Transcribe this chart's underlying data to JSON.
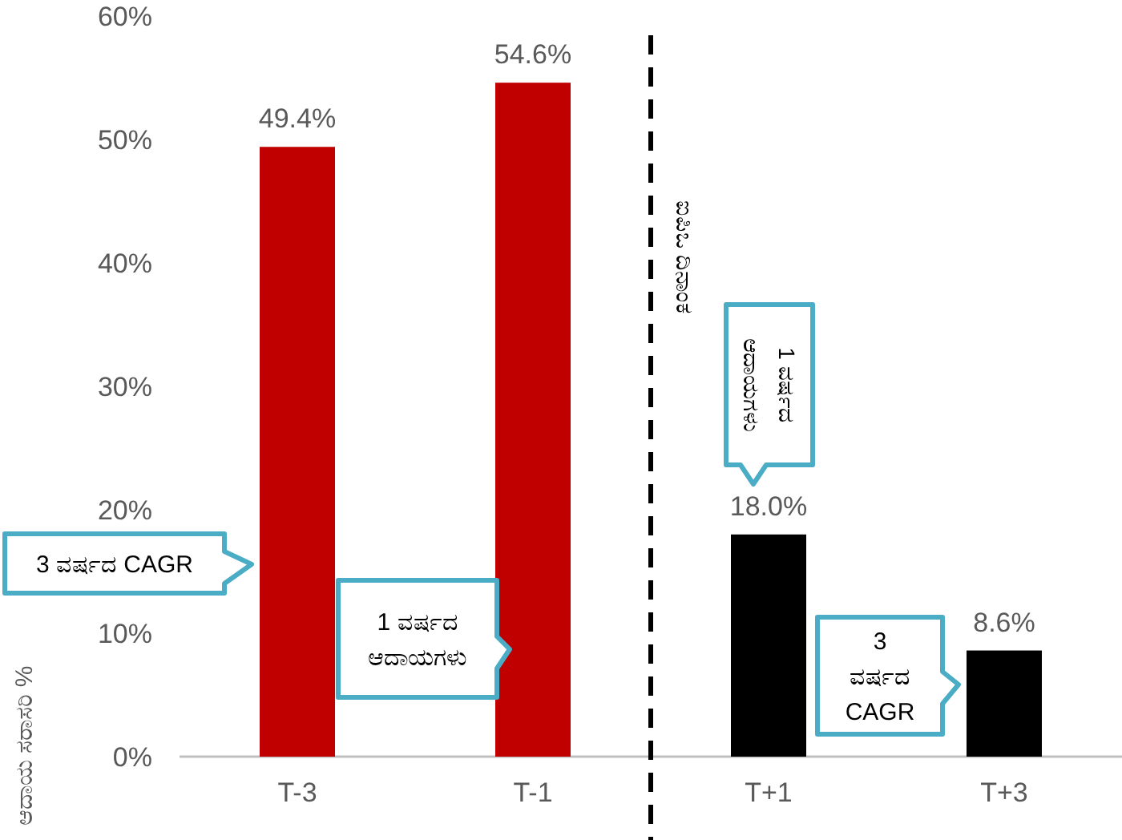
{
  "chart_data": {
    "type": "bar",
    "categories": [
      "T-3",
      "T-1",
      "T+1",
      "T+3"
    ],
    "values": [
      49.4,
      54.6,
      18.0,
      8.6
    ],
    "colors": [
      "#c00000",
      "#c00000",
      "#000000",
      "#000000"
    ],
    "value_labels": [
      "49.4%",
      "54.6%",
      "18.0%",
      "8.6%"
    ],
    "ylabel": "ಆದಾಯ ಸರಾಸರಿ %",
    "ylim": [
      0,
      60
    ],
    "yticks": [
      {
        "value": 0,
        "label": "0%"
      },
      {
        "value": 10,
        "label": "10%"
      },
      {
        "value": 20,
        "label": "20%"
      },
      {
        "value": 30,
        "label": "30%"
      },
      {
        "value": 40,
        "label": "40%"
      },
      {
        "value": 50,
        "label": "50%"
      },
      {
        "value": 60,
        "label": "60%"
      }
    ],
    "annotations": [
      "3 ವರ್ಷದ CAGR",
      "1 ವರ್ಷದ ಆದಾಯಗಳು",
      "1 ವರ್ಷದ ಆದಾಯಗಳು",
      "3 ವರ್ಷದ CAGR",
      "ಐಪಿಒ ದಿನಾಂಕ"
    ],
    "grid": false
  }
}
